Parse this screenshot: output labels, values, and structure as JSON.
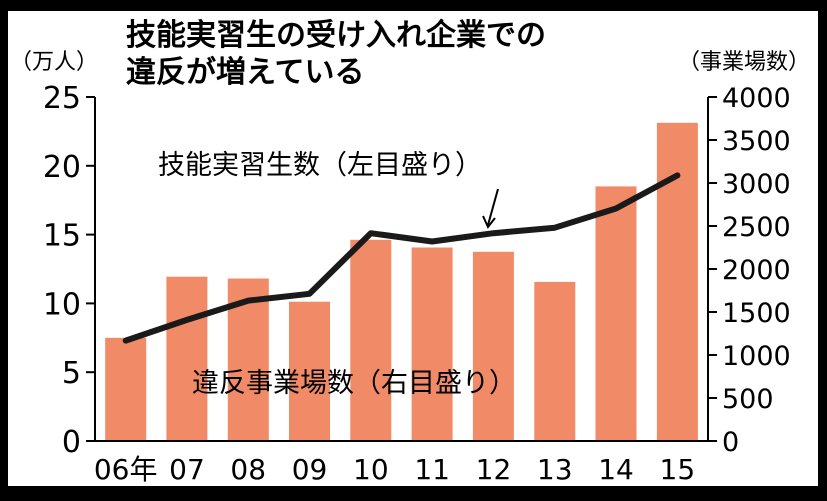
{
  "chart_data": {
    "type": "bar",
    "title": "技能実習生の受け入れ企業での違反が増えている",
    "title_lines": [
      "技能実習生の受け入れ企業での",
      "違反が増えている"
    ],
    "left_axis_unit": "（万人）",
    "right_axis_unit": "（事業場数）",
    "categories": [
      "06年",
      "07",
      "08",
      "09",
      "10",
      "11",
      "12",
      "13",
      "14",
      "15"
    ],
    "left_ylim": [
      0,
      25
    ],
    "left_ticks": [
      "0",
      "5",
      "10",
      "15",
      "20",
      "25"
    ],
    "right_ylim": [
      0,
      4000
    ],
    "right_ticks": [
      "0",
      "500",
      "1000",
      "1500",
      "2000",
      "2500",
      "3000",
      "3500",
      "4000"
    ],
    "series": [
      {
        "name": "違反事業場数（右目盛り）",
        "type": "bar",
        "axis": "right",
        "color": "#f08a67",
        "values": [
          1200,
          1910,
          1890,
          1620,
          2340,
          2250,
          2200,
          1850,
          2960,
          3700
        ]
      },
      {
        "name": "技能実習生数（左目盛り）",
        "type": "line",
        "axis": "left",
        "color": "#1a1a1a",
        "values": [
          7.3,
          8.8,
          10.2,
          10.7,
          15.1,
          14.5,
          15.1,
          15.5,
          16.9,
          19.3
        ]
      }
    ],
    "grid": false
  }
}
